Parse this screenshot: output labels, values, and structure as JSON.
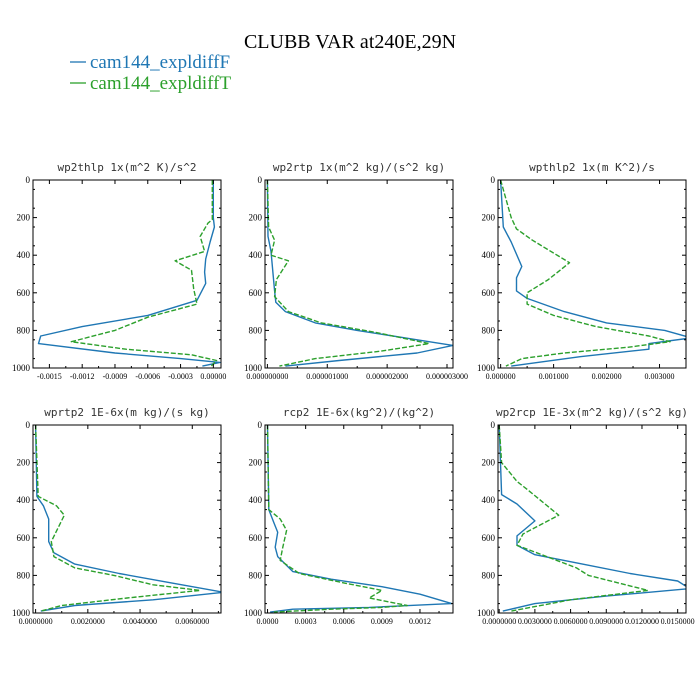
{
  "figure": {
    "title": "CLUBB VAR at240E,29N",
    "legend": [
      {
        "label": "cam144_expldiffF",
        "color": "#1f77b4",
        "dash": "solid"
      },
      {
        "label": "cam144_expldiffT",
        "color": "#2ca02c",
        "dash": "dashed"
      }
    ]
  },
  "chart_data": [
    {
      "type": "line",
      "title": "wp2thlp  1x(m^2 K)/s^2",
      "ylim": [
        1000,
        0
      ],
      "xlim": [
        -0.00165,
        7e-05
      ],
      "yticks": [
        0,
        200,
        400,
        600,
        800,
        1000
      ],
      "xticks": [
        -0.0015,
        -0.0012,
        -0.0009,
        -0.0006,
        -0.0003,
        0.0
      ],
      "xticklabels": [
        "-0.0015",
        "-0.0012",
        "-0.0009",
        "-0.0006",
        "-0.0003",
        "0.00000"
      ],
      "series": [
        {
          "name": "cam144_expldiffF",
          "x": [
            0.0,
            0.0,
            1e-05,
            -3e-05,
            -7e-05,
            -8e-05,
            -7e-05,
            -0.00015,
            -0.0006,
            -0.0012,
            -0.00158,
            -0.0016,
            -0.0009,
            -0.0003,
            6e-05,
            -0.0001
          ],
          "y": [
            0,
            200,
            250,
            330,
            420,
            490,
            550,
            640,
            720,
            780,
            830,
            870,
            920,
            950,
            970,
            990
          ]
        },
        {
          "name": "cam144_expldiffT",
          "x": [
            -1e-05,
            -1e-05,
            -5e-05,
            -0.00012,
            -8e-05,
            -0.00035,
            -0.0002,
            -0.00018,
            -0.00015,
            -0.0006,
            -0.0009,
            -0.0013,
            -0.0008,
            -0.0002,
            3e-05,
            -2e-05
          ],
          "y": [
            0,
            210,
            230,
            300,
            380,
            430,
            480,
            580,
            660,
            730,
            800,
            860,
            900,
            930,
            960,
            990
          ]
        }
      ]
    },
    {
      "type": "line",
      "title": "wp2rtp  1x(m^2 kg)/(s^2 kg)",
      "ylim": [
        1000,
        0
      ],
      "xlim": [
        -4e-08,
        3.1e-06
      ],
      "yticks": [
        0,
        200,
        400,
        600,
        800,
        1000
      ],
      "xticks": [
        0.0,
        1e-06,
        2e-06,
        3e-06
      ],
      "xticklabels": [
        "0.000000000",
        "0.000001000",
        "0.000002000",
        "0.000003000"
      ],
      "series": [
        {
          "name": "cam144_expldiffF",
          "x": [
            0.0,
            1e-08,
            6e-08,
            8e-08,
            1e-07,
            1.2e-07,
            1.4e-07,
            3e-07,
            8e-07,
            1.5e-06,
            2.5e-06,
            3.1e-06,
            2.5e-06,
            1.2e-06,
            3e-07
          ],
          "y": [
            0,
            300,
            380,
            450,
            520,
            590,
            650,
            700,
            760,
            800,
            850,
            880,
            920,
            960,
            990
          ]
        },
        {
          "name": "cam144_expldiffT",
          "x": [
            0.0,
            2e-08,
            1.2e-07,
            6e-08,
            3.5e-07,
            1.5e-07,
            1.2e-07,
            3.5e-07,
            9e-07,
            1.8e-06,
            2.7e-06,
            1.9e-06,
            8e-07,
            2e-07
          ],
          "y": [
            0,
            250,
            320,
            400,
            430,
            530,
            620,
            700,
            760,
            810,
            870,
            910,
            950,
            990
          ]
        }
      ]
    },
    {
      "type": "line",
      "title": "wpthlp2  1x(m K^2)/s",
      "ylim": [
        1000,
        0
      ],
      "xlim": [
        -5e-05,
        0.0035
      ],
      "yticks": [
        0,
        200,
        400,
        600,
        800,
        1000
      ],
      "xticks": [
        0.0,
        0.001,
        0.002,
        0.003
      ],
      "xticklabels": [
        "0.000000",
        "0.001000",
        "0.002000",
        "0.003000"
      ],
      "series": [
        {
          "name": "cam144_expldiffF",
          "x": [
            0.0,
            5e-05,
            0.0002,
            0.0004,
            0.0003,
            0.0003,
            0.0005,
            0.0012,
            0.002,
            0.0031,
            0.0036,
            0.0028,
            0.0028,
            0.0015,
            0.0002
          ],
          "y": [
            0,
            250,
            330,
            460,
            520,
            590,
            630,
            700,
            760,
            800,
            840,
            870,
            900,
            940,
            990
          ]
        },
        {
          "name": "cam144_expldiffT",
          "x": [
            0.0,
            0.0002,
            0.0003,
            0.0006,
            0.0013,
            0.0009,
            0.0005,
            0.0005,
            0.001,
            0.0018,
            0.0028,
            0.0032,
            0.0024,
            0.0012,
            0.0004,
            0.0001
          ],
          "y": [
            0,
            200,
            260,
            320,
            440,
            530,
            600,
            660,
            720,
            780,
            830,
            860,
            890,
            920,
            950,
            990
          ]
        }
      ]
    },
    {
      "type": "line",
      "title": "wprtp2  1E-6x(m kg)/(s kg)",
      "ylim": [
        1000,
        0
      ],
      "xlim": [
        -0.0001,
        0.0071
      ],
      "yticks": [
        0,
        200,
        400,
        600,
        800,
        1000
      ],
      "xticks": [
        0.0,
        0.002,
        0.004,
        0.006
      ],
      "xticklabels": [
        "0.0000000",
        "0.0020000",
        "0.0040000",
        "0.0060000"
      ],
      "series": [
        {
          "name": "cam144_expldiffF",
          "x": [
            0.0,
            5e-05,
            0.0003,
            0.0005,
            0.0005,
            0.0007,
            0.0015,
            0.0032,
            0.0052,
            0.0072,
            0.0045,
            0.0015,
            0.0002
          ],
          "y": [
            0,
            380,
            430,
            500,
            620,
            680,
            740,
            790,
            840,
            890,
            930,
            960,
            990
          ]
        },
        {
          "name": "cam144_expldiffT",
          "x": [
            0.0,
            0.0001,
            0.0008,
            0.0011,
            0.0006,
            0.0007,
            0.0015,
            0.003,
            0.0045,
            0.0063,
            0.0035,
            0.001,
            0.0002
          ],
          "y": [
            0,
            380,
            430,
            480,
            620,
            700,
            760,
            800,
            850,
            880,
            920,
            960,
            990
          ]
        }
      ]
    },
    {
      "type": "line",
      "title": "rcp2  1E-6x(kg^2)/(kg^2)",
      "ylim": [
        1000,
        0
      ],
      "xlim": [
        -2e-05,
        0.00146
      ],
      "yticks": [
        0,
        200,
        400,
        600,
        800,
        1000
      ],
      "xticks": [
        0.0,
        0.0003,
        0.0006,
        0.0009,
        0.0012
      ],
      "xticklabels": [
        "0.0000",
        "0.0003",
        "0.0006",
        "0.0009",
        "0.0012"
      ],
      "series": [
        {
          "name": "cam144_expldiffF",
          "x": [
            0.0,
            1e-05,
            5e-05,
            8e-05,
            6e-05,
            8e-05,
            0.0002,
            0.0005,
            0.0009,
            0.0012,
            0.00145,
            0.0008,
            0.0002,
            2e-05
          ],
          "y": [
            0,
            450,
            520,
            570,
            650,
            700,
            780,
            820,
            860,
            900,
            950,
            970,
            980,
            995
          ]
        },
        {
          "name": "cam144_expldiffT",
          "x": [
            0.0,
            1e-05,
            0.0001,
            0.00015,
            0.00012,
            0.0001,
            0.00025,
            0.0006,
            0.0009,
            0.0008,
            0.0011,
            0.0009,
            0.0005,
            5e-05
          ],
          "y": [
            0,
            450,
            500,
            560,
            650,
            720,
            790,
            840,
            880,
            920,
            960,
            970,
            980,
            995
          ]
        }
      ]
    },
    {
      "type": "line",
      "title": "wp2rcp  1E-3x(m^2 kg)/(s^2 kg)",
      "ylim": [
        1000,
        0
      ],
      "xlim": [
        -0.0001,
        0.0157
      ],
      "yticks": [
        0,
        200,
        400,
        600,
        800,
        1000
      ],
      "xticks": [
        0.0,
        0.003,
        0.006,
        0.009,
        0.012,
        0.015
      ],
      "xticklabels": [
        "0.0000000",
        "0.0030000",
        "0.0060000",
        "0.0090000",
        "0.0120000",
        "0.0150000"
      ],
      "series": [
        {
          "name": "cam144_expldiffF",
          "x": [
            0.0,
            0.0002,
            0.0015,
            0.003,
            0.0015,
            0.0015,
            0.003,
            0.007,
            0.011,
            0.015,
            0.016,
            0.009,
            0.003,
            0.0003
          ],
          "y": [
            0,
            370,
            420,
            510,
            590,
            640,
            690,
            740,
            790,
            830,
            870,
            910,
            950,
            990
          ]
        },
        {
          "name": "cam144_expldiffT",
          "x": [
            0.0,
            0.0002,
            0.0015,
            0.0025,
            0.005,
            0.002,
            0.0015,
            0.004,
            0.0065,
            0.0075,
            0.01,
            0.0125,
            0.006,
            0.001
          ],
          "y": [
            0,
            200,
            300,
            350,
            480,
            580,
            640,
            700,
            760,
            800,
            840,
            880,
            930,
            990
          ]
        }
      ]
    }
  ]
}
